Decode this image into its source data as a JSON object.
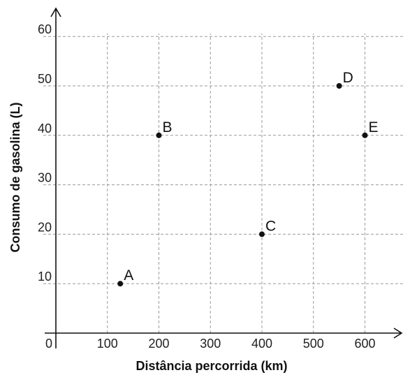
{
  "chart_data": {
    "type": "scatter",
    "title": "",
    "xlabel": "Distância percorrida (km)",
    "ylabel": "Consumo de gasolina (L)",
    "xlim": [
      0,
      650
    ],
    "ylim": [
      0,
      65
    ],
    "grid": true,
    "xticks": [
      0,
      100,
      200,
      300,
      400,
      500,
      600
    ],
    "yticks": [
      10,
      20,
      30,
      40,
      50,
      60
    ],
    "points": [
      {
        "label": "A",
        "x": 125,
        "y": 10
      },
      {
        "label": "B",
        "x": 200,
        "y": 40
      },
      {
        "label": "C",
        "x": 400,
        "y": 20
      },
      {
        "label": "D",
        "x": 550,
        "y": 50
      },
      {
        "label": "E",
        "x": 600,
        "y": 40
      }
    ],
    "colors": {
      "points": "#111111",
      "grid": "#9a9a9a",
      "axes": "#111111"
    }
  }
}
